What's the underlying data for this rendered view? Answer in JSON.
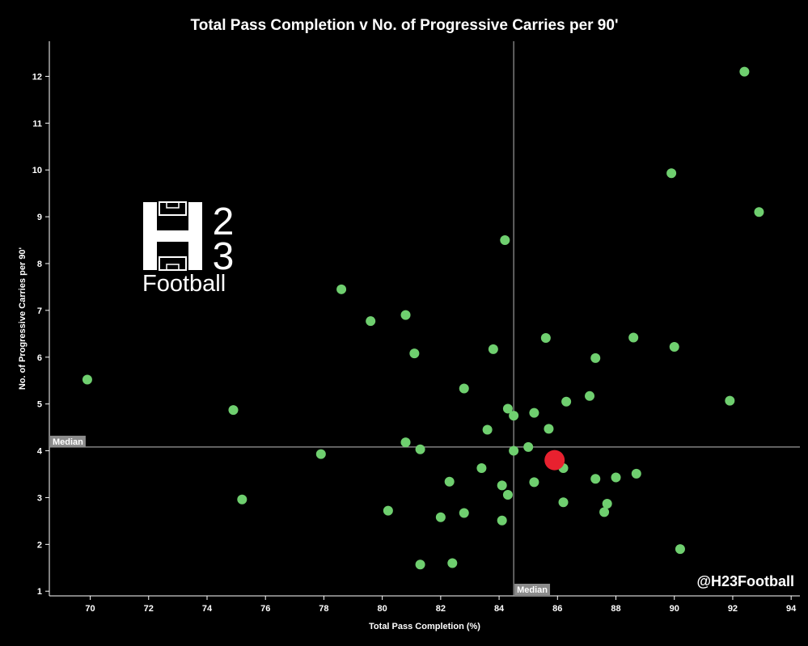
{
  "chart_data": {
    "type": "scatter",
    "title": "Total Pass Completion v No. of Progressive Carries per 90'",
    "xlabel": "Total Pass Completion (%)",
    "ylabel": "No. of Progressive Carries per 90'",
    "xlim": [
      68.6,
      94.3
    ],
    "ylim": [
      0.9,
      12.75
    ],
    "xticks": [
      70,
      72,
      74,
      76,
      78,
      80,
      82,
      84,
      86,
      88,
      90,
      92,
      94
    ],
    "yticks": [
      1,
      2,
      3,
      4,
      5,
      6,
      7,
      8,
      9,
      10,
      11,
      12
    ],
    "grid": false,
    "median": {
      "x": 84.5,
      "y": 4.08,
      "label": "Median"
    },
    "series": [
      {
        "color": "#6fcf6f",
        "points": [
          [
            92.4,
            12.1
          ],
          [
            89.9,
            9.93
          ],
          [
            92.9,
            9.1
          ],
          [
            84.2,
            8.5
          ],
          [
            78.6,
            7.45
          ],
          [
            80.8,
            6.9
          ],
          [
            79.6,
            6.77
          ],
          [
            81.1,
            6.08
          ],
          [
            83.8,
            6.17
          ],
          [
            85.6,
            6.41
          ],
          [
            88.6,
            6.42
          ],
          [
            90.0,
            6.22
          ],
          [
            87.3,
            5.98
          ],
          [
            69.9,
            5.52
          ],
          [
            82.8,
            5.33
          ],
          [
            87.1,
            5.17
          ],
          [
            86.3,
            5.05
          ],
          [
            91.9,
            5.07
          ],
          [
            74.9,
            4.87
          ],
          [
            84.3,
            4.9
          ],
          [
            84.5,
            4.75
          ],
          [
            85.2,
            4.81
          ],
          [
            85.7,
            4.47
          ],
          [
            83.6,
            4.45
          ],
          [
            80.8,
            4.18
          ],
          [
            81.3,
            4.03
          ],
          [
            84.5,
            4.0
          ],
          [
            85.0,
            4.08
          ],
          [
            77.9,
            3.93
          ],
          [
            86.2,
            3.63
          ],
          [
            83.4,
            3.63
          ],
          [
            88.7,
            3.51
          ],
          [
            87.3,
            3.4
          ],
          [
            88.0,
            3.43
          ],
          [
            82.3,
            3.34
          ],
          [
            85.2,
            3.33
          ],
          [
            84.1,
            3.26
          ],
          [
            84.3,
            3.06
          ],
          [
            75.2,
            2.96
          ],
          [
            86.2,
            2.9
          ],
          [
            87.7,
            2.87
          ],
          [
            87.6,
            2.69
          ],
          [
            80.2,
            2.72
          ],
          [
            82.8,
            2.67
          ],
          [
            82.0,
            2.58
          ],
          [
            84.1,
            2.51
          ],
          [
            90.2,
            1.9
          ],
          [
            82.4,
            1.6
          ],
          [
            81.3,
            1.57
          ]
        ]
      },
      {
        "color": "#e8212f",
        "points": [
          [
            85.9,
            3.8
          ]
        ]
      }
    ]
  },
  "logo": {
    "top_number": "2",
    "bottom_number": "3",
    "word": "Football"
  },
  "watermark": "@H23Football"
}
